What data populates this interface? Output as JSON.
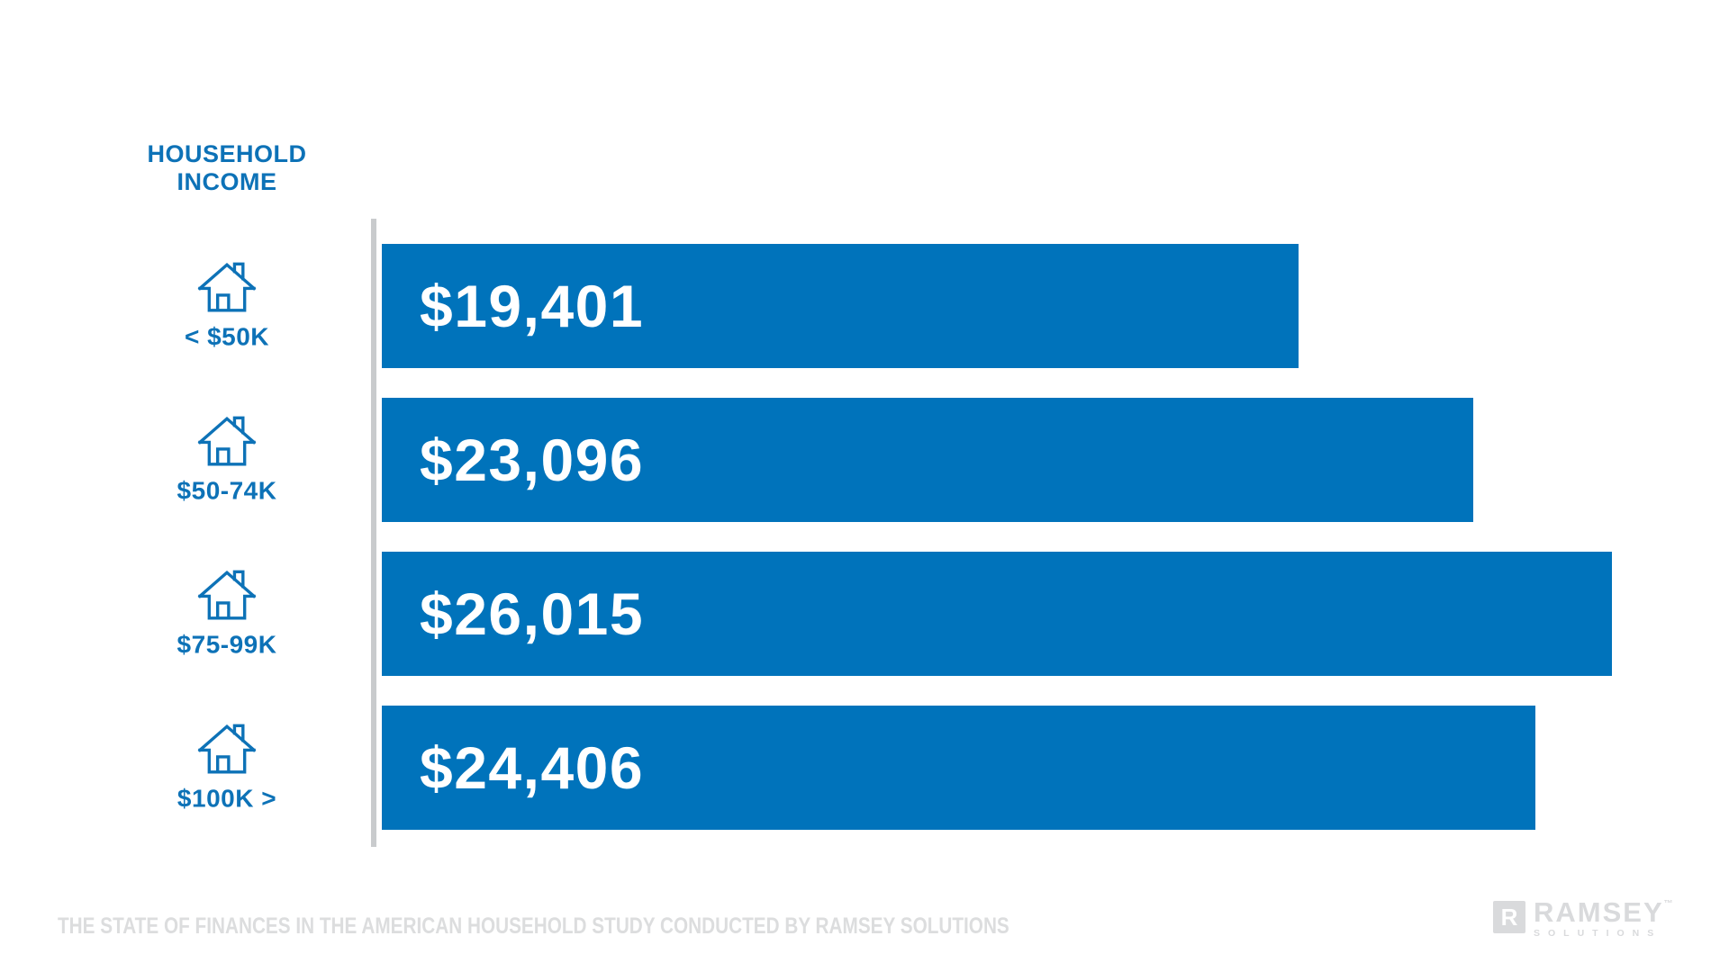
{
  "chart_data": {
    "type": "bar",
    "orientation": "horizontal",
    "title": "HOUSEHOLD INCOME",
    "categories": [
      "< $50K",
      "$50-74K",
      "$75-99K",
      "$100K >"
    ],
    "values": [
      19401,
      23096,
      26015,
      24406
    ],
    "value_labels": [
      "$19,401",
      "$23,096",
      "$26,015",
      "$24,406"
    ],
    "xlim": [
      0,
      28500
    ],
    "grid": false,
    "legend_position": "none",
    "bar_color": "#0073bb",
    "category_label_color": "#0d72b7",
    "value_label_color": "#ffffff",
    "axis_line_color": "#c9cbcd",
    "category_icon": "house-icon"
  },
  "footer": {
    "source_text": "THE STATE OF FINANCES IN THE AMERICAN HOUSEHOLD STUDY CONDUCTED BY RAMSEY SOLUTIONS",
    "color": "#dcddde"
  },
  "logo": {
    "box_letter": "R",
    "brand": "RAMSEY",
    "trademark": "™",
    "sub": "SOLUTIONS",
    "color": "#d9dadc"
  }
}
